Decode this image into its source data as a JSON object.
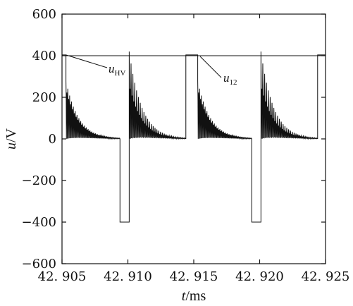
{
  "chart_data": {
    "type": "line",
    "title": "",
    "xlabel": {
      "var": "t",
      "unit": "/ms"
    },
    "ylabel": {
      "var": "u",
      "unit": "/V"
    },
    "xlim": [
      42.905,
      42.925
    ],
    "ylim": [
      -600,
      600
    ],
    "x_ticks": [
      42.905,
      42.91,
      42.915,
      42.92,
      42.925
    ],
    "x_tick_labels": [
      "42. 905",
      "42. 910",
      "42. 915",
      "42. 920",
      "42. 925"
    ],
    "y_ticks": [
      600,
      400,
      200,
      0,
      -200,
      -400,
      -600
    ],
    "y_tick_labels": [
      "600",
      "400",
      "200",
      "0",
      "−200",
      "−400",
      "−600"
    ],
    "grid": false,
    "legend": [
      {
        "var": "u",
        "sub": "HV",
        "at": [
          42.9075,
          400
        ]
      },
      {
        "var": "u",
        "sub": "12",
        "at": [
          42.9155,
          404
        ]
      }
    ],
    "series": [
      {
        "name_var": "u",
        "name_sub": "HV",
        "style": "flat",
        "points": [
          [
            42.905,
            400
          ],
          [
            42.925,
            400
          ]
        ]
      },
      {
        "name_var": "u",
        "name_sub": "12",
        "style": "ringing-square",
        "period_ms": 0.01,
        "pulse_level": 404,
        "low_level": -400,
        "segments": [
          {
            "type": "high",
            "t0": 42.905,
            "t1": 42.9053
          },
          {
            "type": "ring",
            "t0": 42.9053,
            "t1": 42.9094,
            "peak_max": 240,
            "peak_min": -280,
            "oscillation_period_ms": 0.00014,
            "decay_ms": 0.00095
          },
          {
            "type": "low",
            "t0": 42.9094,
            "t1": 42.9101
          },
          {
            "type": "ring",
            "t0": 42.9101,
            "t1": 42.9144,
            "peak_max": 260,
            "peak_min": -420,
            "oscillation_period_ms": 0.00014,
            "decay_ms": 0.00095
          },
          {
            "type": "high",
            "t0": 42.9144,
            "t1": 42.9153
          },
          {
            "type": "ring",
            "t0": 42.9153,
            "t1": 42.9194,
            "peak_max": 240,
            "peak_min": -280,
            "oscillation_period_ms": 0.00014,
            "decay_ms": 0.00095
          },
          {
            "type": "low",
            "t0": 42.9194,
            "t1": 42.9201
          },
          {
            "type": "ring",
            "t0": 42.9201,
            "t1": 42.9244,
            "peak_max": 260,
            "peak_min": -420,
            "oscillation_period_ms": 0.00014,
            "decay_ms": 0.00095
          },
          {
            "type": "high",
            "t0": 42.9244,
            "t1": 42.925
          }
        ]
      }
    ]
  }
}
